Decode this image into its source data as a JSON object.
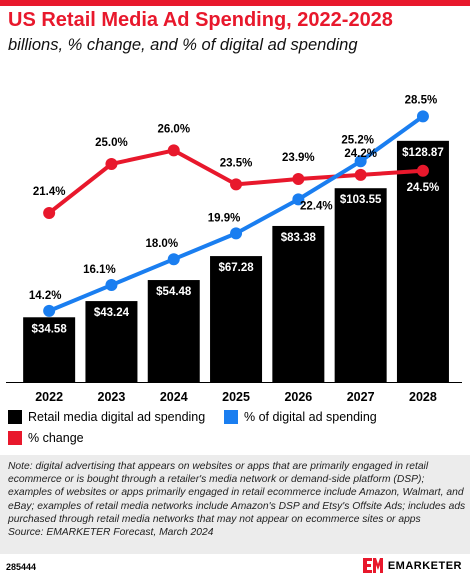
{
  "title": "US Retail Media Ad Spending, 2022-2028",
  "subtitle": "billions, % change, and % of digital ad spending",
  "chart_data": {
    "type": "bar",
    "categories": [
      "2022",
      "2023",
      "2024",
      "2025",
      "2026",
      "2027",
      "2028"
    ],
    "series": [
      {
        "name": "Retail media digital ad spending",
        "type": "bar",
        "values": [
          34.58,
          43.24,
          54.48,
          67.28,
          83.38,
          103.55,
          128.87
        ],
        "labels": [
          "$34.58",
          "$43.24",
          "$54.48",
          "$67.28",
          "$83.38",
          "$103.55",
          "$128.87"
        ],
        "color": "#000000"
      },
      {
        "name": "% of digital ad spending",
        "type": "line",
        "values": [
          14.2,
          16.1,
          18.0,
          19.9,
          22.4,
          25.2,
          28.5
        ],
        "labels": [
          "14.2%",
          "16.1%",
          "18.0%",
          "19.9%",
          "22.4%",
          "25.2%",
          "28.5%"
        ],
        "color": "#1a7ef0"
      },
      {
        "name": "% change",
        "type": "line",
        "values": [
          21.4,
          25.0,
          26.0,
          23.5,
          23.9,
          24.2,
          24.5
        ],
        "labels": [
          "21.4%",
          "25.0%",
          "26.0%",
          "23.5%",
          "23.9%",
          "24.2%",
          "24.5%"
        ],
        "color": "#e8182c"
      }
    ],
    "ylim_bars": [
      0,
      140
    ],
    "ylim_lines": [
      10,
      30
    ],
    "grid": false,
    "legend_position": "bottom"
  },
  "legend": [
    {
      "label": "Retail media digital ad spending",
      "color": "#000000"
    },
    {
      "label": "% of digital ad spending",
      "color": "#1a7ef0"
    },
    {
      "label": "% change",
      "color": "#e8182c"
    }
  ],
  "note": "Note: digital advertising that appears on websites or apps that are primarily engaged in retail ecommerce or is bought through a retailer's media network or demand-side platform (DSP); examples of websites or apps primarily engaged in retail ecommerce include Amazon, Walmart, and eBay; examples of retail media networks include Amazon's DSP and Etsy's Offsite Ads; includes ads purchased through retail media networks that may not appear on ecommerce sites or apps",
  "source": "Source: EMARKETER Forecast, March 2024",
  "chart_id": "285444",
  "brand": "EMARKETER",
  "colors": {
    "accent": "#e8182c",
    "blue": "#1a7ef0",
    "bar": "#000000"
  }
}
